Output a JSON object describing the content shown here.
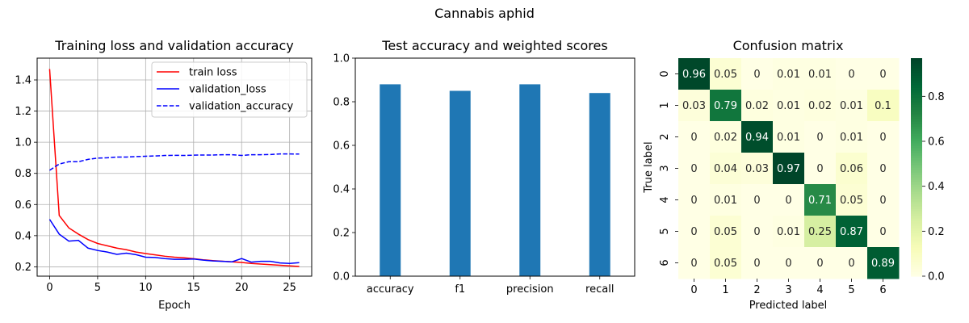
{
  "figure": {
    "suptitle": "Cannabis aphid"
  },
  "chart_data": [
    {
      "type": "line",
      "title": "Training loss and validation accuracy",
      "xlabel": "Epoch",
      "ylabel": "",
      "xlim": [
        -1.3,
        27.3
      ],
      "ylim": [
        0.14,
        1.54
      ],
      "xticks": [
        0,
        5,
        10,
        15,
        20,
        25
      ],
      "yticks": [
        0.2,
        0.4,
        0.6,
        0.8,
        1.0,
        1.2,
        1.4
      ],
      "ytick_labels": [
        "0.2",
        "0.4",
        "0.6",
        "0.8",
        "1.0",
        "1.2",
        "1.4"
      ],
      "grid": true,
      "legend_position": "top-right",
      "x": [
        0,
        1,
        2,
        3,
        4,
        5,
        6,
        7,
        8,
        9,
        10,
        11,
        12,
        13,
        14,
        15,
        16,
        17,
        18,
        19,
        20,
        21,
        22,
        23,
        24,
        25,
        26
      ],
      "series": [
        {
          "name": "train loss",
          "color": "#ff0000",
          "style": "solid",
          "values": [
            1.47,
            0.53,
            0.45,
            0.41,
            0.375,
            0.35,
            0.335,
            0.32,
            0.31,
            0.295,
            0.285,
            0.277,
            0.268,
            0.262,
            0.258,
            0.252,
            0.245,
            0.24,
            0.236,
            0.232,
            0.228,
            0.222,
            0.218,
            0.214,
            0.21,
            0.206,
            0.202
          ]
        },
        {
          "name": "validation_loss",
          "color": "#0000ff",
          "style": "solid",
          "values": [
            0.505,
            0.41,
            0.365,
            0.37,
            0.32,
            0.305,
            0.295,
            0.28,
            0.288,
            0.278,
            0.262,
            0.26,
            0.253,
            0.248,
            0.248,
            0.25,
            0.243,
            0.238,
            0.235,
            0.232,
            0.253,
            0.23,
            0.235,
            0.235,
            0.225,
            0.222,
            0.227
          ]
        },
        {
          "name": "validation_accuracy",
          "color": "#0000ff",
          "style": "dashed",
          "values": [
            0.82,
            0.86,
            0.875,
            0.875,
            0.89,
            0.898,
            0.9,
            0.905,
            0.905,
            0.908,
            0.91,
            0.912,
            0.915,
            0.916,
            0.915,
            0.917,
            0.918,
            0.918,
            0.92,
            0.92,
            0.915,
            0.92,
            0.92,
            0.921,
            0.925,
            0.925,
            0.924
          ]
        }
      ]
    },
    {
      "type": "bar",
      "title": "Test accuracy and weighted scores",
      "xlabel": "",
      "ylabel": "",
      "ylim": [
        0,
        1.0
      ],
      "yticks": [
        0.0,
        0.2,
        0.4,
        0.6,
        0.8,
        1.0
      ],
      "ytick_labels": [
        "0.0",
        "0.2",
        "0.4",
        "0.6",
        "0.8",
        "1.0"
      ],
      "grid": false,
      "color": "#1f77b4",
      "categories": [
        "accuracy",
        "f1",
        "precision",
        "recall"
      ],
      "values": [
        0.88,
        0.85,
        0.88,
        0.84
      ]
    },
    {
      "type": "heatmap",
      "title": "Confusion matrix",
      "xlabel": "Predicted label",
      "ylabel": "True label",
      "x_categories": [
        "0",
        "1",
        "2",
        "3",
        "4",
        "5",
        "6"
      ],
      "y_categories": [
        "0",
        "1",
        "2",
        "3",
        "4",
        "5",
        "6"
      ],
      "colormap": "YlGn",
      "colorbar_ticks": [
        0.0,
        0.2,
        0.4,
        0.6,
        0.8
      ],
      "colorbar_tick_labels": [
        "0.0",
        "0.2",
        "0.4",
        "0.6",
        "0.8"
      ],
      "vmin": 0.0,
      "vmax": 0.97,
      "cell_labels": [
        [
          "0.96",
          "0.05",
          "0",
          "0.01",
          "0.01",
          "0",
          "0"
        ],
        [
          "0.03",
          "0.79",
          "0.02",
          "0.01",
          "0.02",
          "0.01",
          "0.1"
        ],
        [
          "0",
          "0.02",
          "0.94",
          "0.01",
          "0",
          "0.01",
          "0"
        ],
        [
          "0",
          "0.04",
          "0.03",
          "0.97",
          "0",
          "0.06",
          "0"
        ],
        [
          "0",
          "0.01",
          "0",
          "0",
          "0.71",
          "0.05",
          "0"
        ],
        [
          "0",
          "0.05",
          "0",
          "0.01",
          "0.25",
          "0.87",
          "0"
        ],
        [
          "0",
          "0.05",
          "0",
          "0",
          "0",
          "0",
          "0.89"
        ]
      ],
      "values": [
        [
          0.96,
          0.05,
          0,
          0.01,
          0.01,
          0,
          0
        ],
        [
          0.03,
          0.79,
          0.02,
          0.01,
          0.02,
          0.01,
          0.1
        ],
        [
          0,
          0.02,
          0.94,
          0.01,
          0,
          0.01,
          0
        ],
        [
          0,
          0.04,
          0.03,
          0.97,
          0,
          0.06,
          0
        ],
        [
          0,
          0.01,
          0,
          0,
          0.71,
          0.05,
          0
        ],
        [
          0,
          0.05,
          0,
          0.01,
          0.25,
          0.87,
          0
        ],
        [
          0,
          0.05,
          0,
          0,
          0,
          0,
          0.89
        ]
      ]
    }
  ]
}
